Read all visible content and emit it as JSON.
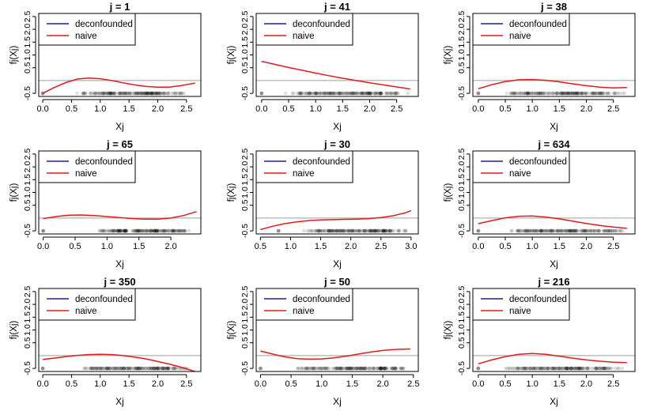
{
  "colors": {
    "deconfounded": "#1f1f9e",
    "naive": "#e31a1c",
    "reference": "#b0b0b0",
    "rug": "#000000"
  },
  "chart_data": [
    {
      "type": "line",
      "title": "j = 1",
      "xlabel": "Xj",
      "ylabel": "fj(Xj)",
      "xlim": [
        -0.07,
        2.75
      ],
      "ylim": [
        -0.62,
        2.62
      ],
      "x_ticks": [
        "0.0",
        "0.5",
        "1.0",
        "1.5",
        "2.0",
        "2.5"
      ],
      "y_ticks": [
        "-0.5",
        "0.5",
        "1.0",
        "1.5",
        "2.0",
        "2.5"
      ],
      "legend": [
        "deconfounded",
        "naive"
      ],
      "reference_y": 0.0,
      "series": [
        {
          "name": "naive",
          "x": [
            0.0,
            0.2,
            0.4,
            0.6,
            0.8,
            1.0,
            1.2,
            1.4,
            1.6,
            1.8,
            2.0,
            2.2,
            2.4,
            2.65
          ],
          "y": [
            -0.5,
            -0.27,
            -0.08,
            0.06,
            0.1,
            0.07,
            0.0,
            -0.09,
            -0.17,
            -0.23,
            -0.26,
            -0.26,
            -0.2,
            -0.1
          ]
        }
      ],
      "rug": [
        0.0,
        0.5,
        2.6
      ]
    },
    {
      "type": "line",
      "title": "j = 41",
      "xlabel": "Xj",
      "ylabel": "fj(Xj)",
      "xlim": [
        -0.1,
        2.9
      ],
      "ylim": [
        -0.62,
        2.62
      ],
      "x_ticks": [
        "0.0",
        "0.5",
        "1.0",
        "1.5",
        "2.0",
        "2.5"
      ],
      "y_ticks": [
        "-0.5",
        "0.5",
        "1.0",
        "1.5",
        "2.0",
        "2.5"
      ],
      "legend": [
        "deconfounded",
        "naive"
      ],
      "reference_y": 0.0,
      "series": [
        {
          "name": "naive",
          "x": [
            0.0,
            0.25,
            0.5,
            0.75,
            1.0,
            1.25,
            1.5,
            1.75,
            2.0,
            2.25,
            2.5,
            2.75
          ],
          "y": [
            0.75,
            0.63,
            0.51,
            0.4,
            0.29,
            0.19,
            0.09,
            0.0,
            -0.09,
            -0.17,
            -0.25,
            -0.33
          ]
        }
      ],
      "rug": [
        0.0,
        0.3,
        0.45,
        2.75
      ]
    },
    {
      "type": "line",
      "title": "j = 38",
      "xlabel": "Xj",
      "ylabel": "fj(Xj)",
      "xlim": [
        -0.1,
        2.9
      ],
      "ylim": [
        -0.62,
        2.62
      ],
      "x_ticks": [
        "0.0",
        "0.5",
        "1.0",
        "1.5",
        "2.0",
        "2.5"
      ],
      "y_ticks": [
        "-0.5",
        "0.5",
        "1.0",
        "1.5",
        "2.0",
        "2.5"
      ],
      "legend": [
        "deconfounded",
        "naive"
      ],
      "reference_y": 0.0,
      "series": [
        {
          "name": "naive",
          "x": [
            0.0,
            0.25,
            0.5,
            0.75,
            1.0,
            1.25,
            1.5,
            1.75,
            2.0,
            2.25,
            2.5,
            2.75
          ],
          "y": [
            -0.32,
            -0.16,
            -0.04,
            0.03,
            0.04,
            0.01,
            -0.05,
            -0.13,
            -0.2,
            -0.26,
            -0.29,
            -0.27
          ]
        }
      ],
      "rug": [
        0.0,
        0.4,
        0.6,
        2.8
      ]
    },
    {
      "type": "line",
      "title": "j = 65",
      "xlabel": "Xj",
      "ylabel": "fj(Xj)",
      "xlim": [
        -0.07,
        2.47
      ],
      "ylim": [
        -0.62,
        2.62
      ],
      "x_ticks": [
        "0.0",
        "0.5",
        "1.0",
        "1.5",
        "2.0"
      ],
      "y_ticks": [
        "-0.5",
        "0.5",
        "1.0",
        "1.5",
        "2.0",
        "2.5"
      ],
      "legend": [
        "deconfounded",
        "naive"
      ],
      "reference_y": 0.0,
      "series": [
        {
          "name": "naive",
          "x": [
            0.0,
            0.2,
            0.4,
            0.6,
            0.8,
            1.0,
            1.2,
            1.4,
            1.6,
            1.8,
            2.0,
            2.2,
            2.4
          ],
          "y": [
            -0.02,
            0.06,
            0.11,
            0.12,
            0.1,
            0.06,
            0.02,
            -0.02,
            -0.04,
            -0.04,
            0.0,
            0.1,
            0.25
          ]
        }
      ],
      "rug": [
        0.0,
        0.8,
        2.35
      ]
    },
    {
      "type": "line",
      "title": "j = 30",
      "xlabel": "Xj",
      "ylabel": "fj(Xj)",
      "xlim": [
        0.43,
        3.12
      ],
      "ylim": [
        -0.62,
        2.62
      ],
      "x_ticks": [
        "0.5",
        "1.0",
        "1.5",
        "2.0",
        "2.5",
        "3.0"
      ],
      "y_ticks": [
        "-0.5",
        "0.5",
        "1.0",
        "1.5",
        "2.0",
        "2.5"
      ],
      "legend": [
        "deconfounded",
        "naive"
      ],
      "reference_y": 0.0,
      "series": [
        {
          "name": "naive",
          "x": [
            0.5,
            0.7,
            0.9,
            1.1,
            1.3,
            1.5,
            1.7,
            1.9,
            2.1,
            2.3,
            2.5,
            2.7,
            2.9,
            3.0
          ],
          "y": [
            -0.45,
            -0.32,
            -0.22,
            -0.15,
            -0.1,
            -0.07,
            -0.06,
            -0.05,
            -0.04,
            -0.02,
            0.02,
            0.09,
            0.2,
            0.29
          ]
        }
      ],
      "rug": [
        0.8,
        1.1,
        1.3,
        1.55,
        2.0,
        2.5,
        3.0
      ]
    },
    {
      "type": "line",
      "title": "j = 634",
      "xlabel": "Xj",
      "ylabel": "fj(Xj)",
      "xlim": [
        -0.1,
        2.9
      ],
      "ylim": [
        -0.62,
        2.62
      ],
      "x_ticks": [
        "0.0",
        "0.5",
        "1.0",
        "1.5",
        "2.0",
        "2.5"
      ],
      "y_ticks": [
        "-0.5",
        "0.5",
        "1.0",
        "1.5",
        "2.0",
        "2.5"
      ],
      "legend": [
        "deconfounded",
        "naive"
      ],
      "reference_y": 0.0,
      "series": [
        {
          "name": "naive",
          "x": [
            0.0,
            0.25,
            0.5,
            0.75,
            1.0,
            1.25,
            1.5,
            1.75,
            2.0,
            2.25,
            2.5,
            2.75
          ],
          "y": [
            -0.22,
            -0.1,
            0.01,
            0.07,
            0.08,
            0.04,
            -0.03,
            -0.12,
            -0.21,
            -0.29,
            -0.35,
            -0.4
          ]
        }
      ],
      "rug": [
        0.0,
        0.5,
        0.8,
        2.8
      ]
    },
    {
      "type": "line",
      "title": "j = 350",
      "xlabel": "Xj",
      "ylabel": "fj(Xj)",
      "xlim": [
        -0.07,
        2.75
      ],
      "ylim": [
        -0.62,
        2.62
      ],
      "x_ticks": [
        "0.0",
        "0.5",
        "1.0",
        "1.5",
        "2.0",
        "2.5"
      ],
      "y_ticks": [
        "-0.5",
        "0.5",
        "1.0",
        "1.5",
        "2.0",
        "2.5"
      ],
      "legend": [
        "deconfounded",
        "naive"
      ],
      "reference_y": 0.0,
      "series": [
        {
          "name": "naive",
          "x": [
            0.0,
            0.2,
            0.4,
            0.6,
            0.8,
            1.0,
            1.2,
            1.4,
            1.6,
            1.8,
            2.0,
            2.2,
            2.4,
            2.65
          ],
          "y": [
            -0.15,
            -0.1,
            -0.04,
            0.01,
            0.04,
            0.05,
            0.04,
            0.0,
            -0.06,
            -0.13,
            -0.23,
            -0.33,
            -0.45,
            -0.62
          ]
        }
      ],
      "rug": [
        0.0,
        0.6,
        2.6
      ]
    },
    {
      "type": "line",
      "title": "j = 50",
      "xlabel": "Xj",
      "ylabel": "fj(Xj)",
      "xlim": [
        -0.07,
        2.58
      ],
      "ylim": [
        -0.62,
        2.62
      ],
      "x_ticks": [
        "0.0",
        "0.5",
        "1.0",
        "1.5",
        "2.0",
        "2.5"
      ],
      "y_ticks": [
        "-0.5",
        "0.5",
        "1.0",
        "1.5",
        "2.0",
        "2.5"
      ],
      "legend": [
        "deconfounded",
        "naive"
      ],
      "reference_y": 0.0,
      "series": [
        {
          "name": "naive",
          "x": [
            0.0,
            0.2,
            0.4,
            0.6,
            0.8,
            1.0,
            1.2,
            1.4,
            1.6,
            1.8,
            2.0,
            2.2,
            2.45
          ],
          "y": [
            0.18,
            0.06,
            -0.05,
            -0.12,
            -0.14,
            -0.13,
            -0.09,
            -0.02,
            0.06,
            0.14,
            0.2,
            0.24,
            0.26
          ]
        }
      ],
      "rug": [
        0.0,
        0.5,
        2.45
      ]
    },
    {
      "type": "line",
      "title": "j = 216",
      "xlabel": "Xj",
      "ylabel": "fj(Xj)",
      "xlim": [
        -0.1,
        2.9
      ],
      "ylim": [
        -0.62,
        2.62
      ],
      "x_ticks": [
        "0.0",
        "0.5",
        "1.0",
        "1.5",
        "2.0",
        "2.5"
      ],
      "y_ticks": [
        "-0.5",
        "0.5",
        "1.0",
        "1.5",
        "2.0",
        "2.5"
      ],
      "legend": [
        "deconfounded",
        "naive"
      ],
      "reference_y": 0.0,
      "series": [
        {
          "name": "naive",
          "x": [
            0.0,
            0.25,
            0.5,
            0.75,
            1.0,
            1.25,
            1.5,
            1.75,
            2.0,
            2.25,
            2.5,
            2.75
          ],
          "y": [
            -0.32,
            -0.17,
            -0.04,
            0.05,
            0.08,
            0.05,
            -0.02,
            -0.1,
            -0.17,
            -0.22,
            -0.26,
            -0.27
          ]
        }
      ],
      "rug": [
        0.0,
        0.4,
        0.8,
        2.8
      ]
    }
  ]
}
